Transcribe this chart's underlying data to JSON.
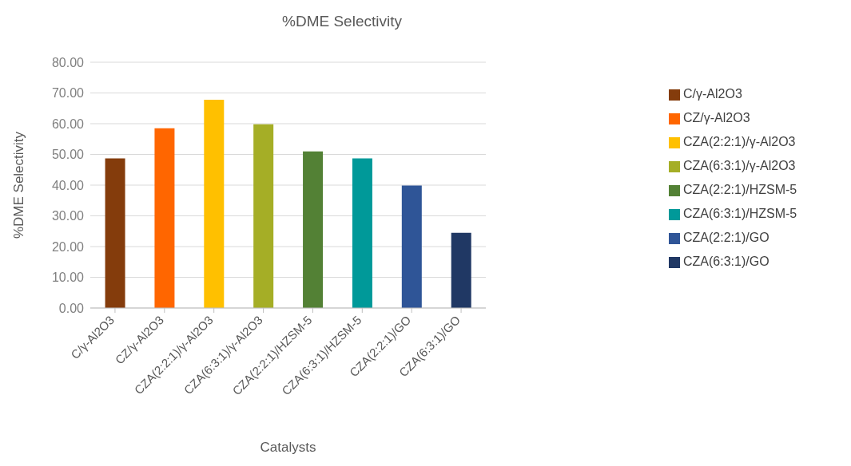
{
  "chart_data": {
    "type": "bar",
    "title": "%DME Selectivity",
    "xlabel": "Catalysts",
    "ylabel": "%DME Selectivity",
    "categories": [
      "C/γ-Al2O3",
      "CZ/γ-Al2O3",
      "CZA(2:2:1)/γ-Al2O3",
      "CZA(6:3:1)/γ-Al2O3",
      "CZA(2:2:1)/HZSM-5",
      "CZA(6:3:1)/HZSM-5",
      "CZA(2:2:1)/GO",
      "CZA(6:3:1)/GO"
    ],
    "series": [
      {
        "name": "C/γ-Al2O3",
        "color": "#843c0c",
        "values": [
          48.7,
          null,
          null,
          null,
          null,
          null,
          null,
          null
        ]
      },
      {
        "name": "CZ/γ-Al2O3",
        "color": "#ff6600",
        "values": [
          null,
          58.5,
          null,
          null,
          null,
          null,
          null,
          null
        ]
      },
      {
        "name": "CZA(2:2:1)/γ-Al2O3",
        "color": "#ffc000",
        "values": [
          null,
          null,
          67.8,
          null,
          null,
          null,
          null,
          null
        ]
      },
      {
        "name": "CZA(6:3:1)/γ-Al2O3",
        "color": "#a5ae26",
        "values": [
          null,
          null,
          null,
          59.8,
          null,
          null,
          null,
          null
        ]
      },
      {
        "name": "CZA(2:2:1)/HZSM-5",
        "color": "#538135",
        "values": [
          null,
          null,
          null,
          null,
          51.0,
          null,
          null,
          null
        ]
      },
      {
        "name": "CZA(6:3:1)/HZSM-5",
        "color": "#009999",
        "values": [
          null,
          null,
          null,
          null,
          null,
          48.7,
          null,
          null
        ]
      },
      {
        "name": "CZA(2:2:1)/GO",
        "color": "#2f5597",
        "values": [
          null,
          null,
          null,
          null,
          null,
          null,
          39.9,
          null
        ]
      },
      {
        "name": "CZA(6:3:1)/GO",
        "color": "#203864",
        "values": [
          null,
          null,
          null,
          null,
          null,
          null,
          null,
          24.5
        ]
      }
    ],
    "stacked": true,
    "ylim": [
      0,
      80
    ],
    "yticks": [
      {
        "value": 0,
        "label": "0.00"
      },
      {
        "value": 10,
        "label": "10.00"
      },
      {
        "value": 20,
        "label": "20.00"
      },
      {
        "value": 30,
        "label": "30.00"
      },
      {
        "value": 40,
        "label": "40.00"
      },
      {
        "value": 50,
        "label": "50.00"
      },
      {
        "value": 60,
        "label": "60.00"
      },
      {
        "value": 70,
        "label": "70.00"
      },
      {
        "value": 80,
        "label": "80.00"
      }
    ],
    "grid": "y",
    "legend": "right"
  }
}
